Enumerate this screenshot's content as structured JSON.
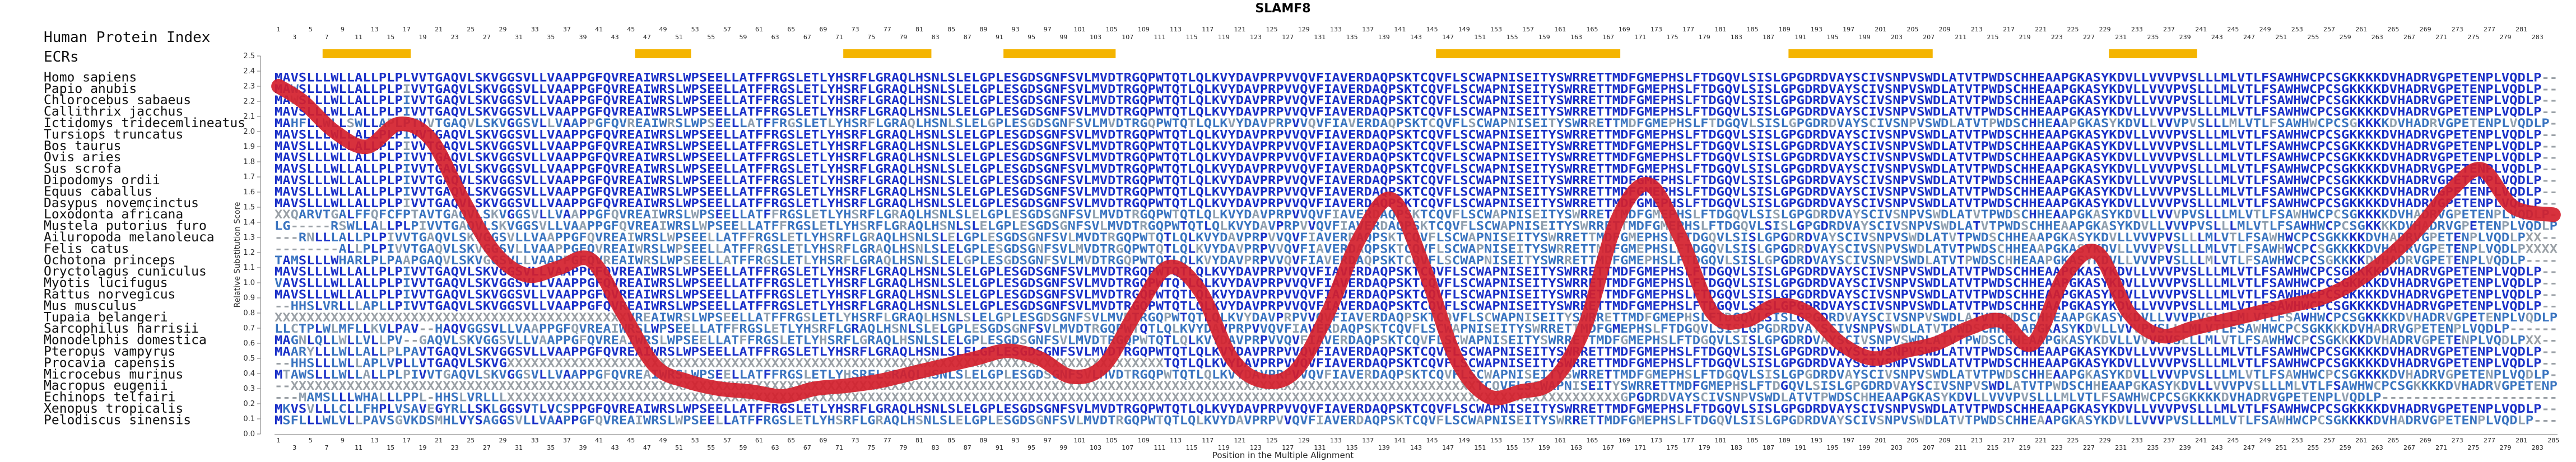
{
  "figure": {
    "title": "SLAMF8",
    "header_label": "Human Protein Index",
    "ecr_label": "ECRs",
    "xlabel": "Position in the Multiple Alignment",
    "ylabel": "Relative Substitution Score"
  },
  "species": [
    "Homo sapiens",
    "Papio anubis",
    "Chlorocebus sabaeus",
    "Callithrix jacchus",
    "Ictidomys tridecemlineatus",
    "Tursiops truncatus",
    "Bos taurus",
    "Ovis aries",
    "Sus scrofa",
    "Dipodomys ordii",
    "Equus caballus",
    "Dasypus novemcinctus",
    "Loxodonta africana",
    "Mustela putorius furo",
    "Ailuropoda melanoleuca",
    "Felis catus",
    "Ochotona princeps",
    "Oryctolagus cuniculus",
    "Myotis lucifugus",
    "Rattus norvegicus",
    "Mus musculus",
    "Tupaia belangeri",
    "Sarcophilus harrisii",
    "Monodelphis domestica",
    "Pteropus vampyrus",
    "Procavia capensis",
    "Microcebus murinus",
    "Macropus eugenii",
    "Echinops telfairi",
    "Xenopus tropicalis",
    "Pelodiscus sinensis"
  ],
  "sequences": [
    "MAVSLLLWLLALLPLPLVVTGAQVLSKVGGSVLLVAAPPGFQVREAIWRSLWPSEELLATFFRGSLETLYHSRFLGRAQLHSNLSLELGPLESGDSGNFSVLMVDTRGQPWTQTLQLKVYDAVPRPVVQVFIAVERDAQPSKTCQVFLSCWAPNISEITYSWRRETTMDFGMEPHSLFTDGQVLSISLGPGDRDVAYSCIVSNPVSWDLATVTPWDSCHHEAAPGKASYKDVLLVVVPVSLLLMLVTLFSAWHWCPCSGKKKKDVHADRVGPETENPLVQDLP",
    "MAWSLLLWLLALLPLPIVVTGAQVLSKVGGSVLLVAAPPGFQVREAIWRSLWPSEELLATFFRGSLETLYHSRFLGRAQLHSNLSLELGPLESGDSGNFSVLMVDTRGQPWTQTLQLKVYDAVPRPVVQVFIAVERDAQPSKTCQVFLSCWAPNISEITYSWRRETTMDFGMEPHSLFTDGQVLSISLGPGDRDVAYSCIVSNPVSWDLATVTPWDSCHHEAAPGKASYKDVLLVVVPVSLLLMLVTLFSAWHWCPCSGKKKKDVHADRVGPETENPLVQDLP",
    "MAWSLLLWLLALLPLPIVVTGAQVLSKVGGSVLLVAAPPGFQVREAIWRSLWPSEELLATFFRGSLETLYHSRFLGRAQLHSNLSLELGPLESGDSGNFSVLMVDTRGQPWTQTLQLKVYDAVPRPVVQVFIAVERDAQPSKTCQVFLSCWAPNISEITYSWRRETTMDFGMEPHSLFTDGQVLSISLGPGDRDVAYSCIVSNPVSWDLATVTPWDSCHHEAAPGKASYKDVLLVVVPVSLLLMLVTLFSAWHWCPCSGKKKKDVHADRVGPETENPLVQDLP",
    "MAVSLLLWLLALLPLPIVVTGAQVLSKVGGSVLLVAAPPGFQVREAIWRSLWPSEELLATFFRGSLETLYHSRFLGRAQLHSNLSLELGPLESGDSGNFSVLMVDTRGQPWTQTLQLKVYDAVPRPVVQVFIAVERDAQPSKTCQVFLSCWAPNISEITYSWRRETTMDFGMEPHSLFTDGQVLSISLGPGDRDVAYSCIVSNPVSWDLATVTPWDSCHHEAAPGKASYKDVLLVVVPVSLLLMLVTLFSAWHWCPCSGKKKKDVHADRVGPETENPLVQDLP",
    "MAHFLLWLLSWLLAPLPTVVTGAQVLSKVGGSVLLVAAPPGFQVREAIWRSLWPSEELLATFFRGSLETLYHSRFLGRAQLHSNLSLELGPLESGDSGNFSVLMVDTRGQPWTQTLQLKVYDAVPRPVVQVFIAVERDAQPSKTCQVFLSCWAPNISEITYSWRRETTMDFGMEPHSLFTDGQVLSISLGPGDRDVAYSCIVSNPVSWDLATVTPWDSCHHEAAPGKASYKDVLLVVVPVSLLLMLVTLFSAWHWCPCSGKKKKDVHADRVGPETENPLVQDLP",
    "MAVSLLLWLLALLPLPIVVTGAQVLSKVGGSVLLVAAPPGFQVREAIWRSLWPSEELLATFFRGSLETLYHSRFLGRAQLHSNLSLELGPLESGDSGNFSVLMVDTRGQPWTQTLQLKVYDAVPRPVVQVFIAVERDAQPSKTCQVFLSCWAPNISEITYSWRRETTMDFGMEPHSLFTDGQVLSISLGPGDRDVAYSCIVSNPVSWDLATVTPWDSCHHEAAPGKASYKDVLLVVVPVSLLLMLVTLFSAWHWCPCSGKKKKDVHADRVGPETENPLVQDLP",
    "MAVSLLLWLLALLPLPIVVTGAQVLSKVGGSVLLVAAPPGFQVREAIWRSLWPSEELLATFFRGSLETLYHSRFLGRAQLHSNLSLELGPLESGDSGNFSVLMVDTRGQPWTQTLQLKVYDAVPRPVVQVFIAVERDAQPSKTCQVFLSCWAPNISEITYSWRRETTMDFGMEPHSLFTDGQVLSISLGPGDRDVAYSCIVSNPVSWDLATVTPWDSCHHEAAPGKASYKDVLLVVVPVSLLLMLVTLFSAWHWCPCSGKKKKDVHADRVGPETENPLVQDLP",
    "MAVSLLLWLLALLPLPIVVTGAQVLSKVGGSVLLVAAPPGFQVREAIWRSLWPSEELLATFFRGSLETLYHSRFLGRAQLHSNLSLELGPLESGDSGNFSVLMVDTRGQPWTQTLQLKVYDAVPRPVVQVFIAVERDAQPSKTCQVFLSCWAPNISEITYSWRRETTMDFGMEPHSLFTDGQVLSISLGPGDRDVAYSCIVSNPVSWDLATVTPWDSCHHEAAPGKASYKDVLLVVVPVSLLLMLVTLFSAWHWCPCSGKKKKDVHADRVGPETENPLVQDLP",
    "MAVSLLLWLLALLPLPIVVTGAQVLSKVGGSVLLVAAPPGFQVREAIWRSLWPSEELLATFFRGSLETLYHSRFLGRAQLHSNLSLELGPLESGDSGNFSVLMVDTRGQPWTQTLQLKVYDAVPRPVVQVFIAVERDAQPSKTCQVFLSCWAPNISEITYSWRRETTMDFGMEPHSLFTDGQVLSISLGPGDRDVAYSCIVSNPVSWDLATVTPWDSCHHEAAPGKASYKDVLLVVVPVSLLLMLVTLFSAWHWCPCSGKKKKDVHADRVGPETENPLVQDLP",
    "MAVSLLLWLLALLPLPIVVTGAQVLSKVGGSVLLVAAPPGFQVREAIWRSLWPSEELLATFFRGSLETLYHSRFLGRAQLHSNLSLELGPLESGDSGNFSVLMVDTRGQPWTQTLQLKVYDAVPRPVVQVFIAVERDAQPSKTCQVFLSCWAPNISEITYSWRRETTMDFGMEPHSLFTDGQVLSISLGPGDRDVAYSCIVSNPVSWDLATVTPWDSCHHEAAPGKASYKDVLLVVVPVSLLLMLVTLFSAWHWCPCSGKKKKDVHADRVGPETENPLVQDLP",
    "MAVSLLLWLLALLPLPIVVTGAQVLSKVGGSVLLVAAPPGFQVREAIWRSLWPSEELLATFFRGSLETLYHSRFLGRAQLHSNLSLELGPLESGDSGNFSVLMVDTRGQPWTQTLQLKVYDAVPRPVVQVFIAVERDAQPSKTCQVFLSCWAPNISEITYSWRRETTMDFGMEPHSLFTDGQVLSISLGPGDRDVAYSCIVSNPVSWDLATVTPWDSCHHEAAPGKASYKDVLLVVVPVSLLLMLVTLFSAWHWCPCSGKKKKDVHADRVGPETENPLVQDLP",
    "MAVSLLLWLLALLPLPIVVTGAQVLSKVGGSVLLVAAPPGFQVREAIWRSLWPSEELLATFFRGSLETLYHSRFLGRAQLHSNLSLELGPLESGDSGNFSVLMVDTRGQPWTQTLQLKVYDAVPRPVVQVFIAVERDAQPSKTCQVFLSCWAPNISEITYSWRRETTMDFGMEPHSLFTDGQVLSISLGPGDRDVAYSCIVSNPVSWDLATVTPWDSCHHEAAPGKASYKDVLLVVVPVSLLLMLVTLFSAWHWCPCSGKKKKDVHADRVGPETENPLVQDLP",
    "XXQARVTGALFFQFCFPTAVTGAQVLSKVGGSVLLVAAPPGFQVREAIWRSLWPSEELLATFFRGSLETLYHSRFLGRAQLHSNLSLELGPLESGDSGNFSVLMVDTRGQPWTQTLQLKVYDAVPRPVVQVFIAVERDAQPSKTCQVFLSCWAPNISEITYSWRRETTMDFGMEPHSLFTDGQVLSISLGPGDRDVAYSCIVSNPVSWDLATVTPWDSCHHEAAPGKASYKDVLLVVVPVSLLLMLVTLFSAWHWCPCSGKKKKDVHADRVGPETENPLVQDLP",
    "LG-----RSWLLALLPLPIVVTGAQVLSKVGGSVLLVAAPPGFQVREAIWRSLWPSEELLATFFRGSLETLYHSRFLGRAQLHSNLSLELGPLESGDSGNFSVLMVDTRGQPWTQTLQLKVYDAVPRPVVQVFIAVERDAQPSKTCQVFLSCWAPNISEITYSWRRETTMDFGMEPHSLFTDGQVLSISLGPGDRDVAYSCIVSNPVSWDLATVTPWDSCHHEAAPGKASYKDVLLVVVPVSLLLMLVTLFSAWHWCPCSGKKKKDVHADRVGPETENPLVQDLP",
    "---RNLLLALLPLPIVVTGAQVLSKVGGSVLLVAAPPGFQVREAIWRSLWPSEELLATFFRGSLETLYHSRFLGRAQLHSNLSLELGPLESGDSGNFSVLMVDTRGQPWTQTLQLKVYDAVPRPVVQVFIAVERDAQPSKTCQVFLSCWAPNISEITYSWRRETTMDFGMEPHSLFTDGQVLSISLGPGDRDVAYSCIVSNPVSWDLATVTPWDSCHHEAAPGKASYKDVLLVVVPVSLLLMLVTLFSAWHWCPCSGKKKKDVHADRVGPETENPLVQDLPXX",
    "--------ALLPLPIVVTGAQVLSKVGGSVLLVAAPPGFQVREAIWRSLWPSEELLATFFRGSLETLYHSRFLGRAQLHSNLSLELGPLESGDSGNFSVLMVDTRGQPWTQTLQLKVYDAVPRPVVQVFIAVERDAQPSKTCQVFLSCWAPNISEITYSWRRETTMDFGMEPHSLFTDGQVLSISLGPGDRDVAYSCIVSNPVSWDLATVTPWDSCHHEAAPGKASYKDVLLVVVPVSLLLMLVTLFSAWHWCPCSGKKKKDVHADRVGPETENPLVQDLPXXXXXX",
    "TAMSLLLWHARLPLPAAPGAQVLSKVGGSVLLVAAPPGFQVREAIWRSLWPSEELLATFFRGSLETLYHSRFLGRAQLHSNLSLELGPLESGDSGNFSVLMVDTRGQPWTQTLQLKVYDAVPRPVVQVFIAVERDAQPSKTCQVFLSCWAPNISEITYSWRRETTMDFGMEPHSLFTDGQVLSISLGPGDRDVAYSCIVSNPVSWDLATVTPWDSCHHEAAPGKASYKDVLLVVVPVSLLLMLVTLFSAWHWCPCSGKKKKDVHADRVGPETENPLVQDLP",
    "MAVSLLLWLLALLPLPIVVTGAQVLSKVGGSVLLVAAPPGFQVREAIWRSLWPSEELLATFFRGSLETLYHSRFLGRAQLHSNLSLELGPLESGDSGNFSVLMVDTRGQPWTQTLQLKVYDAVPRPVVQVFIAVERDAQPSKTCQVFLSCWAPNISEITYSWRRETTMDFGMEPHSLFTDGQVLSISLGPGDRDVAYSCIVSNPVSWDLATVTPWDSCHHEAAPGKASYKDVLLVVVPVSLLLMLVTLFSAWHWCPCSGKKKKDVHADRVGPETENPLVQDLP",
    "VAVSLLLWLLALLPLPIVVTGAQVLSKVGGSVLLVAAPPGFQVREAIWRSLWPSEELLATFFRGSLETLYHSRFLGRAQLHSNLSLELGPLESGDSGNFSVLMVDTRGQPWTQTLQLKVYDAVPRPVVQVFIAVERDAQPSKTCQVFLSCWAPNISEITYSWRRETTMDFGMEPHSLFTDGQVLSISLGPGDRDVAYSCIVSNPVSWDLATVTPWDSCHHEAAPGKASYKDVLLVVVPVSLLLMLVTLFSAWHWCPCSGKKKKDVHADRVGPETENPLVQDLP",
    "MAVSLLLWLLALLPLPIVVTGAQVLSKVGGSVLLVAAPPGFQVREAIWRSLWPSEELLATFFRGSLETLYHSRFLGRAQLHSNLSLELGPLESGDSGNFSVLMVDTRGQPWTQTLQLKVYDAVPRPVVQVFIAVERDAQPSKTCQVFLSCWAPNISEITYSWRRETTMDFGMEPHSLFTDGQVLSISLGPGDRDVAYSCIVSNPVSWDLATVTPWDSCHHEAAPGKASYKDVLLVVVPVSLLLMLVTLFSAWHWCPCSGKKKKDVHADRVGPETENPLVQDLP",
    "--HHSLVRLLLAPLLPIVVTGAQVLSKVGGSVLLVAAPPGFQVREAIWRSLWPSEELLATFFRGSLETLYHSRFLGRAQLHSNLSLELGPLESGDSGNFSVLMVDTRGQPWTQTLQLKVYDAVPRPVVQVFIAVERDAQPSKTCQVFLSCWAPNISEITYSWRRETTMDFGMEPHSLFTDGQVLSISLGPGDRDVAYSCIVSNPVSWDLATVTPWDSCHHEAAPGKASYKDVLLVVVPVSLLLMLVTLFSAWHWCPCSGKKKKDVHADRVGPETENPLVQDLP",
    "XXXXXXXXXXXXXXXXXXXXXXXXXXXXXXXXXXXXXXXXXXXXVREAIWRSLWPSEELLATFFRGSLETLYHSRFLGRAQLHSNLSLELGPLESGDSGNFSVLMVDTRGQPWTQTLQLKVYDAVPRPVVQVFIAVERDAQPSKTCQVFLSCWAPNISEITYSWRRETTMDFGMEPHSLFTDGQVLSISLGPGDRDVAYSCIVSNPVSWDLATVTPWDSCHHEAAPGKASYKDVLLVVVPVSLLLMLVTLFSAWHWCPCSGKKKKDVHADRVGPETENPLVQDLP",
    "LLCTPLWLMFLLKVLPAV--HAQVGGSVLLVAAPPGFQVREAIWRSLWPSEELLATFFRGSLETLYHSRFLGRAQLHSNLSLELGPLESGDSGNFSVLMVDTRGQPWTQTLQLKVYDAVPRPVVQVFIAVERDAQPSKTCQVFLSCWAPNISEITYSWRRETTMDFGMEPHSLFTDGQVLSISLGPGDRDVAYSCIVSNPVSWDLATVTPWDSCHHEAAPGKASYKDVLLVVVPVSLLLMLVTLFSAWHWCPCSGKKKKDVHADRVGPETENPLVQDLP",
    "MAGNLQLLWLLVLLPV--GAQVLSKVGGSVLLVAAPPGFQVREAIWRSLWPSEELLATFFRGSLETLYHSRFLGRAQLHSNLSLELGPLESGDSGNFSVLMVDTRGQPWTQTLQLKVYDAVPRPVVQVFIAVERDAQPSKTCQVFLSCWAPNISEITYSWRRETTMDFGMEPHSLFTDGQVLSISLGPGDRDVAYSCIVSNPVSWDLATVTPWDSCHHEAAPGKASYKDVLLVVVPVSLLLMLVTLFSAWHWCPCSGKKKKDVHADRVGPETENPLVQDLPXX",
    "MAARYLLLWLLALLPLPAVTGAQVLSKVGGSVLLVAAPPGFQVREAIWRSLWPSEELLATFFRGSLETLYHSRFLGRAQLHSNLSLELGPLESGDSGNFSVLMVDTRGQPWTQTLQLKVYDAVPRPVVQVFIAVERDAQPSKTCQVFLSCWAPNISEITYSWRRETTMDFGMEPHSLFTDGQVLSISLGPGDRDVAYSCIVSNPVSWDLATVTPWDSCHHEAAPGKASYKDVLLVVVPVSLLLMLVTLFSAWHWCPCSGKKKKDVHADRVGPETENPLVQDLP",
    "--HHSLLLWLLAPLVPLLVTGAQVLSKVGXXXXXXXXXXXXXXXXXXXXXXXXXXXXXXXXXXXXXXXXXXXXXXXXXXXXXXXXXXXXXXXXXXXXXXXXXXXXXXXXXXTQTLQLKVYDAVPRPVVQVFIAVERDAQPSKTCQVFLSCWAPNISEITYSWRRETTMDFGMEPHSLFTDGQVLSISLGPGDRDVAYSCIVSNPVSWDLATVTPWDSCHHEAAPGKASYKDVLLVVVPVSLLLMLVTLFSAWHWCPCSGKKKKDVHADRVGPETENPLVQDLP",
    "MTAWSLLLWLLALLPLPIVVTGAQVLSKVGGSVLLVAAPPGFQVREAIWRSLWPSEELLATFFRGSLETLYHSRFLGRAQLHSNLSLELGPLESGDSGNFSVLMVDTRGQPWTQTLQLKVYDAVPRPVVQVFIAVERDAQPSKTCQVFLSCWAPNISEITYSWRRETTMDFGMEPHSLFTDGQVLSISLGPGDRDVAYSCIVSNPVSWDLATVTPWDSCHHEAAPGKASYKDVLLVVVPVSLLLMLVTLFSAWHWCPCSGKKKKDVHADRVGPETENPLVQDLP",
    "--XXXXXXXXXXXXXXXXXXXXXXXXXXXXXXXXXXXXXXXXXXXXXXXXXXXXXXXXXXXXXXXXXXXXXXXXXXXXXXXXXXXXXXXXXXXXXXXXXXXXXXXXXXXXXXXXXXXXXXXXXXXXXXXXXXXXXXXXXXXXXXXXXXXXTCQVFLSCWAPNISEITYSWRRETTMDFGMEPHSLFTDGQVLSISLGPGDRDVAYSCIVSNPVSWDLATVTPWDSCHHEAAPGKASYKDVLLVVVPVSLLLMLVTLFSAWHWCPCSGKKKKDVHADRVGPETENPLVQDLP",
    "---MAMSLLLWHALLLPPL-HHSLVRLLLXXXXXXXXXXXXXXXXXXXXXXXXXXXXXXXXXXXXXXXXXXXXXXXXXXXXXXXXXXXXXXXXXXXXXXXXXXXXXXXXXXXXXXXXXXXXXXXXXXXXXXXXXXXXXXXXXXXXXXXXXXXXXXXXXXXXXXXXXXXGPGDRDVAYSCIVSNPVSWDLATVTPWDSCHHEAAPGKASYKDVLLVVVPVSLLLMLVTLFSAWHWCPCSGKKKKDVHADRVGPETENPLVQDLP",
    "MKVSVLLLCLLFHPLVSAVEGYRLLSKLGGSVTLVCSPPGFQVREAIWRSLWPSEELLATFFRGSLETLYHSRFLGRAQLHSNLSLELGPLESGDSGNFSVLMVDTRGQPWTQTLQLKVYDAVPRPVVQVFIAVERDAQPSKTCQVFLSCWAPNISEITYSWRRETTMDFGMEPHSLFTDGQVLSISLGPGDRDVAYSCIVSNPVSWDLATVTPWDSCHHEAAPGKASYKDVLLVVVPVSLLLMLVTLFSAWHWCPCSGKKKKDVHADRVGPETENPLVQDLP",
    "MSFLLLWLVLLPAVSGVKDSMHLVYSAGGSVLLVAAPPGFQVREAIWRSLWPSEELLATFFRGSLETLYHSRFLGRAQLHSNLSLELGPLESGDSGNFSVLMVDTRGQPWTQTLQLKVYDAVPRPVVQVFIAVERDAQPSKTCQVFLSCWAPNISEITYSWRRETTMDFGMEPHSLFTDGQVLSISLGPGDRDVAYSCIVSNPVSWDLATVTPWDSCHHEAAPGKASYKDVLLVVVPVSLLLMLVTLFSAWHWCPCSGKKKKDVHADRVGPETENPLVQDLP"
  ],
  "colors": {
    "curve": "#d4202c",
    "ecr_bar": "#f4b400",
    "identity_high": "#1a30c8",
    "identity_mid": "#3a74c0",
    "identity_low": "#8f9faf",
    "gap": "#9aa0a6"
  },
  "chart_data": {
    "type": "line",
    "title": "SLAMF8",
    "xlabel": "Position in the Multiple Alignment",
    "ylabel": "Relative Substitution Score",
    "xlim": [
      1,
      285
    ],
    "ylim": [
      0,
      2.5
    ],
    "ytick_labels": [
      "0.0",
      "0.1",
      "0.2",
      "0.3",
      "0.4",
      "0.5",
      "0.6",
      "0.7",
      "0.8",
      "0.9",
      "1.0",
      "1.1",
      "1.2",
      "1.3",
      "1.4",
      "1.5",
      "1.6",
      "1.7",
      "1.8",
      "1.9",
      "2.0",
      "2.1",
      "2.2",
      "2.3",
      "2.4",
      "2.5"
    ],
    "alignment_ticks": {
      "first": 1,
      "last": 285,
      "step": 2
    },
    "protein_index_ticks": {
      "first": 1,
      "last": 283,
      "step": 2
    },
    "ecr_regions": [
      [
        7,
        17
      ],
      [
        46,
        52
      ],
      [
        72,
        82
      ],
      [
        92,
        105
      ],
      [
        146,
        168
      ],
      [
        190,
        207
      ],
      [
        230,
        240
      ]
    ],
    "series": [
      {
        "x": [
          1,
          4,
          8,
          12,
          16,
          20,
          24,
          28,
          32,
          36,
          40,
          44,
          48,
          52,
          56,
          60,
          64,
          68,
          72,
          76,
          80,
          84,
          88,
          92,
          96,
          100,
          104,
          108,
          112,
          116,
          120,
          124,
          128,
          132,
          136,
          140,
          144,
          148,
          152,
          156,
          160,
          164,
          168,
          172,
          176,
          180,
          184,
          188,
          192,
          196,
          200,
          204,
          208,
          212,
          216,
          220,
          224,
          228,
          232,
          236,
          240,
          244,
          248,
          252,
          256,
          260,
          264,
          268,
          272,
          276,
          280,
          285
        ],
        "y": [
          2.3,
          2.2,
          2.0,
          1.9,
          2.05,
          1.95,
          1.55,
          1.2,
          1.05,
          1.1,
          1.15,
          0.8,
          0.45,
          0.35,
          0.3,
          0.28,
          0.25,
          0.3,
          0.32,
          0.35,
          0.4,
          0.45,
          0.5,
          0.55,
          0.5,
          0.38,
          0.45,
          0.8,
          1.1,
          0.95,
          0.5,
          0.35,
          0.42,
          0.8,
          1.3,
          1.55,
          1.1,
          0.5,
          0.25,
          0.28,
          0.35,
          0.7,
          1.4,
          1.65,
          1.3,
          0.8,
          0.75,
          0.85,
          0.8,
          0.6,
          0.5,
          0.55,
          0.6,
          0.7,
          0.75,
          0.6,
          1.05,
          1.2,
          0.8,
          0.65,
          0.7,
          0.75,
          0.8,
          0.85,
          0.9,
          1.0,
          1.15,
          1.35,
          1.6,
          1.75,
          1.5,
          1.45
        ]
      }
    ]
  }
}
